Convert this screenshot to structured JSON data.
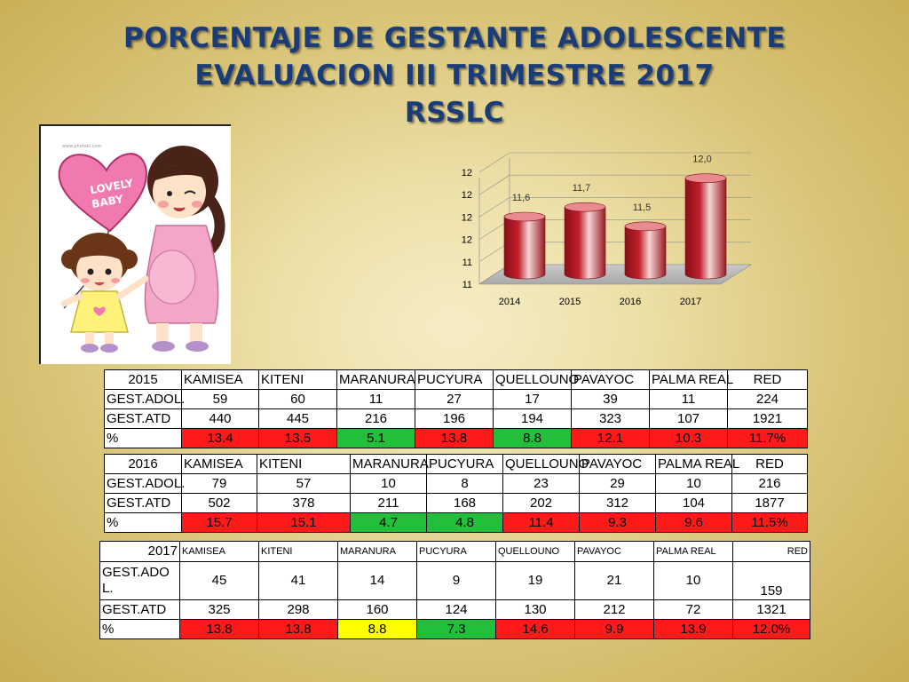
{
  "title": {
    "line1": "PORCENTAJE DE GESTANTE ADOLESCENTE",
    "line2": "EVALUACION  III TRIMESTRE  2017",
    "line3": "RSSLC"
  },
  "illustration": {
    "balloon_text_1": "LOVELY",
    "balloon_text_2": "BABY",
    "watermark": "www.photaki.com"
  },
  "chart_data": {
    "type": "bar",
    "style": "3d-cylinder",
    "categories": [
      "2014",
      "2015",
      "2016",
      "2017"
    ],
    "values": [
      11.6,
      11.7,
      11.5,
      12.0
    ],
    "data_labels": [
      "11,6",
      "11,7",
      "11,5",
      "12,0"
    ],
    "y_tick_labels": [
      "11",
      "11",
      "12",
      "12",
      "12",
      "12"
    ],
    "ylim": [
      11,
      12.2
    ],
    "bar_color": "#c0202a",
    "grid": true
  },
  "colors": {
    "title": "#1a3d7a",
    "bad": "#ff1a1a",
    "good": "#22c03a",
    "warn": "#ffff00"
  },
  "tables": [
    {
      "year": "2015",
      "headers": [
        "KAMISEA",
        "KITENI",
        "MARANURA",
        "PUCYURA",
        "QUELLOUNO",
        "PAVAYOC",
        "PALMA REAL",
        "RED"
      ],
      "rows": [
        {
          "label": "GEST.ADOL.",
          "values": [
            "59",
            "60",
            "11",
            "27",
            "17",
            "39",
            "11",
            "224"
          ]
        },
        {
          "label": "GEST.ATD",
          "values": [
            "440",
            "445",
            "216",
            "196",
            "194",
            "323",
            "107",
            "1921"
          ]
        },
        {
          "label": "%",
          "values": [
            "13.4",
            "13.5",
            "5.1",
            "13.8",
            "8.8",
            "12.1",
            "10.3",
            "11.7%"
          ],
          "status": [
            "red",
            "red",
            "green",
            "red",
            "green",
            "red",
            "red",
            "red"
          ]
        }
      ]
    },
    {
      "year": "2016",
      "headers": [
        "KAMISEA",
        "KITENI",
        "MARANURA",
        "PUCYURA",
        "QUELLOUNO",
        "PAVAYOC",
        "PALMA REAL",
        "RED"
      ],
      "rows": [
        {
          "label": "GEST.ADOL.",
          "values": [
            "79",
            "57",
            "10",
            "8",
            "23",
            "29",
            "10",
            "216"
          ]
        },
        {
          "label": "GEST.ATD",
          "values": [
            "502",
            "378",
            "211",
            "168",
            "202",
            "312",
            "104",
            "1877"
          ]
        },
        {
          "label": "%",
          "values": [
            "15.7",
            "15.1",
            "4.7",
            "4.8",
            "11.4",
            "9.3",
            "9.6",
            "11.5%"
          ],
          "status": [
            "red",
            "red",
            "green",
            "green",
            "red",
            "red",
            "red",
            "red"
          ]
        }
      ]
    },
    {
      "year": "2017",
      "headers": [
        "KAMISEA",
        "KITENI",
        "MARANURA",
        "PUCYURA",
        "QUELLOUNO",
        "PAVAYOC",
        "PALMA REAL",
        "RED"
      ],
      "rows": [
        {
          "label": "GEST.ADOL.",
          "values": [
            "45",
            "41",
            "14",
            "9",
            "19",
            "21",
            "10",
            "159"
          ]
        },
        {
          "label": "GEST.ATD",
          "values": [
            "325",
            "298",
            "160",
            "124",
            "130",
            "212",
            "72",
            "1321"
          ]
        },
        {
          "label": "%",
          "values": [
            "13.8",
            "13.8",
            "8.8",
            "7.3",
            "14.6",
            "9.9",
            "13.9",
            "12.0%"
          ],
          "status": [
            "red",
            "red",
            "yellow",
            "green",
            "red",
            "red",
            "red",
            "red"
          ]
        }
      ]
    }
  ]
}
